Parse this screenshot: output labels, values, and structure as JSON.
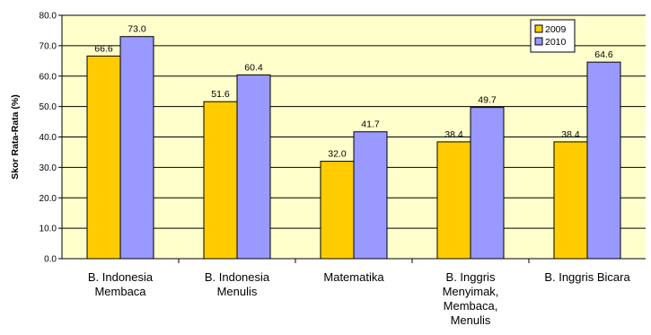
{
  "chart_data": {
    "type": "bar",
    "title": "",
    "xlabel": "",
    "ylabel": "Skor Rata-Rata (%)",
    "ylim": [
      0,
      80
    ],
    "yticks": [
      "0.0",
      "10.0",
      "20.0",
      "30.0",
      "40.0",
      "50.0",
      "60.0",
      "70.0",
      "80.0"
    ],
    "grid": true,
    "legend_position": "top-right",
    "categories": [
      [
        "B. Indonesia",
        "Membaca"
      ],
      [
        "B. Indonesia",
        "Menulis"
      ],
      [
        "Matematika"
      ],
      [
        "B. Inggris",
        "Menyimak,",
        "Membaca,",
        "Menulis"
      ],
      [
        "B. Inggris Bicara"
      ]
    ],
    "series": [
      {
        "name": "2009",
        "color": "#FFCC00",
        "values": [
          66.6,
          51.6,
          32.0,
          38.4,
          38.4
        ],
        "labels": [
          "66.6",
          "51.6",
          "32.0",
          "38.4",
          "38.4"
        ]
      },
      {
        "name": "2010",
        "color": "#9999FF",
        "values": [
          73.0,
          60.4,
          41.7,
          49.7,
          64.6
        ],
        "labels": [
          "73.0",
          "60.4",
          "41.7",
          "49.7",
          "64.6"
        ]
      }
    ],
    "colors": {
      "plot_background": "#FFFFCC",
      "gridline": "#000000",
      "axis": "#000000"
    }
  }
}
